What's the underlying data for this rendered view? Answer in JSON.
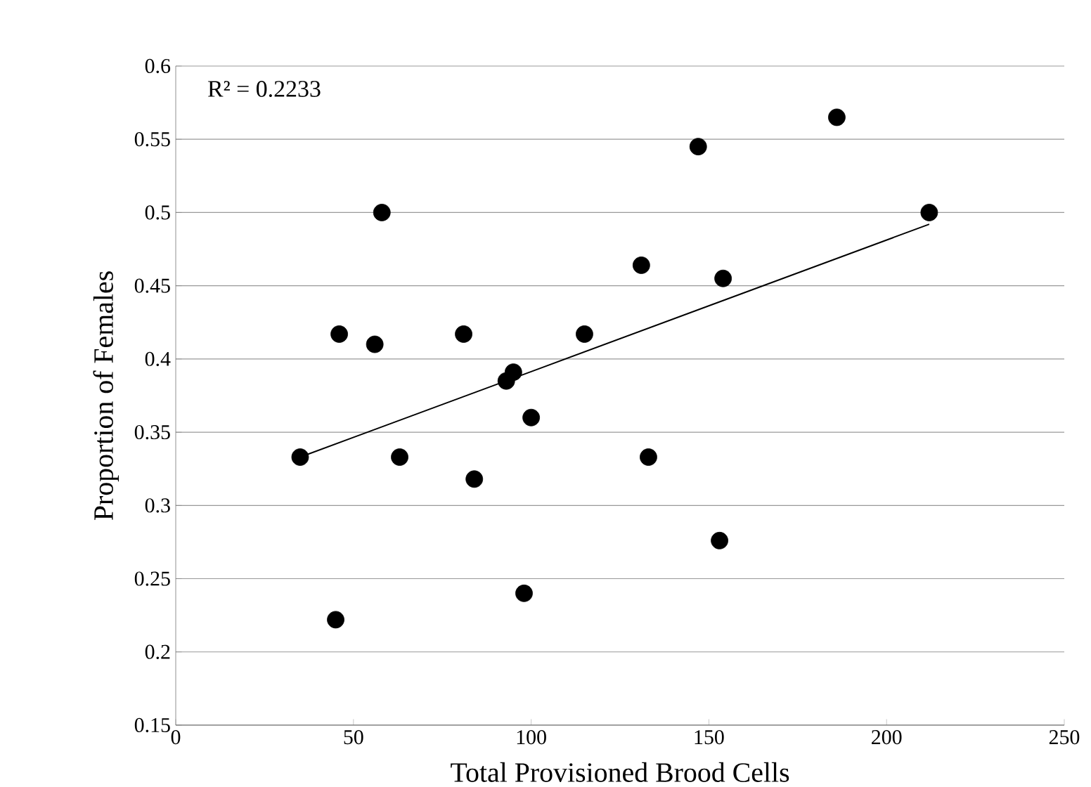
{
  "chart_data": {
    "type": "scatter",
    "xlabel": "Total Provisioned Brood  Cells",
    "ylabel": "Proportion of Females",
    "xlim": [
      0,
      250
    ],
    "ylim": [
      0.15,
      0.6
    ],
    "xticks": [
      0,
      50,
      100,
      150,
      200,
      250
    ],
    "yticks": [
      0.15,
      0.2,
      0.25,
      0.3,
      0.35,
      0.4,
      0.45,
      0.5,
      0.55,
      0.6
    ],
    "grid": "y",
    "marker": "circle",
    "annotations": [
      "R² = 0.2233"
    ],
    "series": [
      {
        "color": "#000000",
        "x": [
          35,
          45,
          46,
          56,
          58,
          63,
          81,
          84,
          93,
          95,
          98,
          100,
          115,
          131,
          133,
          147,
          153,
          154,
          186,
          212
        ],
        "values": [
          0.333,
          0.222,
          0.417,
          0.41,
          0.5,
          0.333,
          0.417,
          0.318,
          0.385,
          0.391,
          0.24,
          0.36,
          0.417,
          0.464,
          0.333,
          0.545,
          0.276,
          0.455,
          0.565,
          0.5
        ]
      },
      {
        "type": "line",
        "marker": "none",
        "color": "#000000",
        "x": [
          35,
          212
        ],
        "values": [
          0.333,
          0.492
        ]
      }
    ]
  }
}
